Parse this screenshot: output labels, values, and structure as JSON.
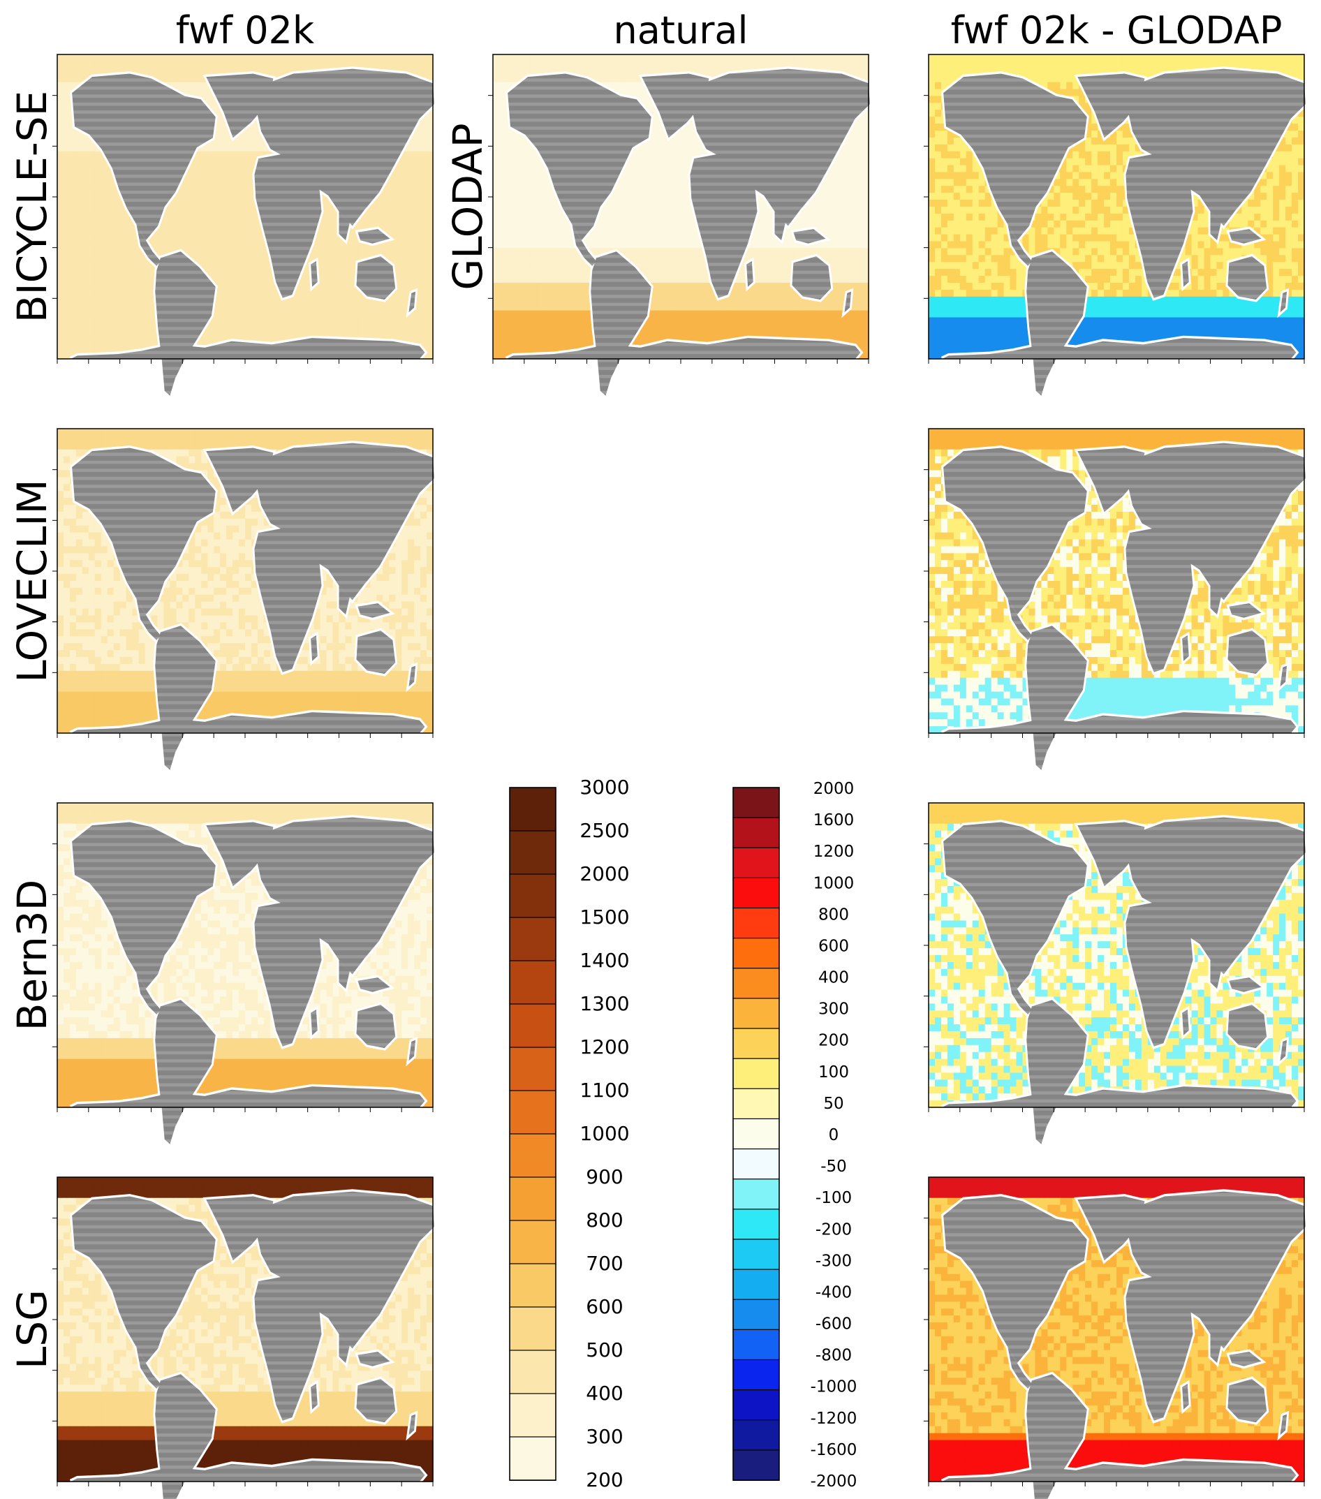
{
  "column_titles": [
    "fwf 02k",
    "natural",
    "fwf 02k - GLODAP"
  ],
  "row_labels": [
    "BICYCLE-SE",
    "LOVECLIM",
    "Bern3D",
    "LSG"
  ],
  "extra_label": "GLODAP",
  "colorbar_absolute": {
    "ticks": [
      "3000",
      "2500",
      "2000",
      "1500",
      "1400",
      "1300",
      "1200",
      "1100",
      "1000",
      "900",
      "800",
      "700",
      "600",
      "500",
      "400",
      "300",
      "200"
    ],
    "colors": [
      "#5c2108",
      "#6f290b",
      "#83310d",
      "#9a3a0e",
      "#b54510",
      "#c85013",
      "#d86218",
      "#e6721e",
      "#f08a27",
      "#f5a032",
      "#f8b446",
      "#f9c965",
      "#fad98a",
      "#fbe6ad",
      "#fcf1ca",
      "#fdf8e2"
    ]
  },
  "colorbar_difference": {
    "ticks": [
      "2000",
      "1600",
      "1200",
      "1000",
      "800",
      "600",
      "400",
      "300",
      "200",
      "100",
      "50",
      "0",
      "-50",
      "-100",
      "-200",
      "-300",
      "-400",
      "-600",
      "-800",
      "-1000",
      "-1200",
      "-1600",
      "-2000"
    ],
    "colors": [
      "#7a1418",
      "#b3121a",
      "#e2141b",
      "#fb0d0d",
      "#ff3c10",
      "#ff6e0c",
      "#fb8d1e",
      "#fbb33c",
      "#fcd258",
      "#fdef7a",
      "#fff8b4",
      "#fdfdec",
      "#f2fbff",
      "#7ff3f8",
      "#2ee8f6",
      "#1dcaf4",
      "#14aef0",
      "#168cee",
      "#1262f6",
      "#0a26ee",
      "#0c14c6",
      "#101aa0",
      "#191e7e"
    ]
  },
  "panels": [
    {
      "row": 0,
      "col": 0,
      "palette": "absolute",
      "pattern": "bicycle_abs"
    },
    {
      "row": 0,
      "col": 1,
      "palette": "absolute",
      "pattern": "glodap_abs"
    },
    {
      "row": 0,
      "col": 2,
      "palette": "difference",
      "pattern": "bicycle_diff"
    },
    {
      "row": 1,
      "col": 0,
      "palette": "absolute",
      "pattern": "loveclim_abs"
    },
    {
      "row": 1,
      "col": 2,
      "palette": "difference",
      "pattern": "loveclim_diff"
    },
    {
      "row": 2,
      "col": 0,
      "palette": "absolute",
      "pattern": "bern_abs"
    },
    {
      "row": 2,
      "col": 2,
      "palette": "difference",
      "pattern": "bern_diff"
    },
    {
      "row": 3,
      "col": 0,
      "palette": "absolute",
      "pattern": "lsg_abs"
    },
    {
      "row": 3,
      "col": 2,
      "palette": "difference",
      "pattern": "lsg_diff"
    }
  ],
  "colors": {
    "land": "#858585",
    "land_stripe": "#9a9a9a",
    "ice": "#ffffff"
  },
  "chart_data": {
    "type": "heatmap",
    "title": "",
    "columns": [
      "fwf 02k",
      "natural",
      "fwf 02k - GLODAP"
    ],
    "rows": [
      "BICYCLE-SE",
      "LOVECLIM",
      "Bern3D",
      "LSG"
    ],
    "colorbars": [
      {
        "ticks": [
          200,
          300,
          400,
          500,
          600,
          700,
          800,
          900,
          1000,
          1100,
          1200,
          1300,
          1400,
          1500,
          2000,
          2500,
          3000
        ]
      },
      {
        "ticks": [
          -2000,
          -1600,
          -1200,
          -1000,
          -800,
          -600,
          -400,
          -300,
          -200,
          -100,
          -50,
          0,
          50,
          100,
          200,
          300,
          400,
          600,
          800,
          1000,
          1200,
          1600,
          2000
        ]
      }
    ]
  }
}
